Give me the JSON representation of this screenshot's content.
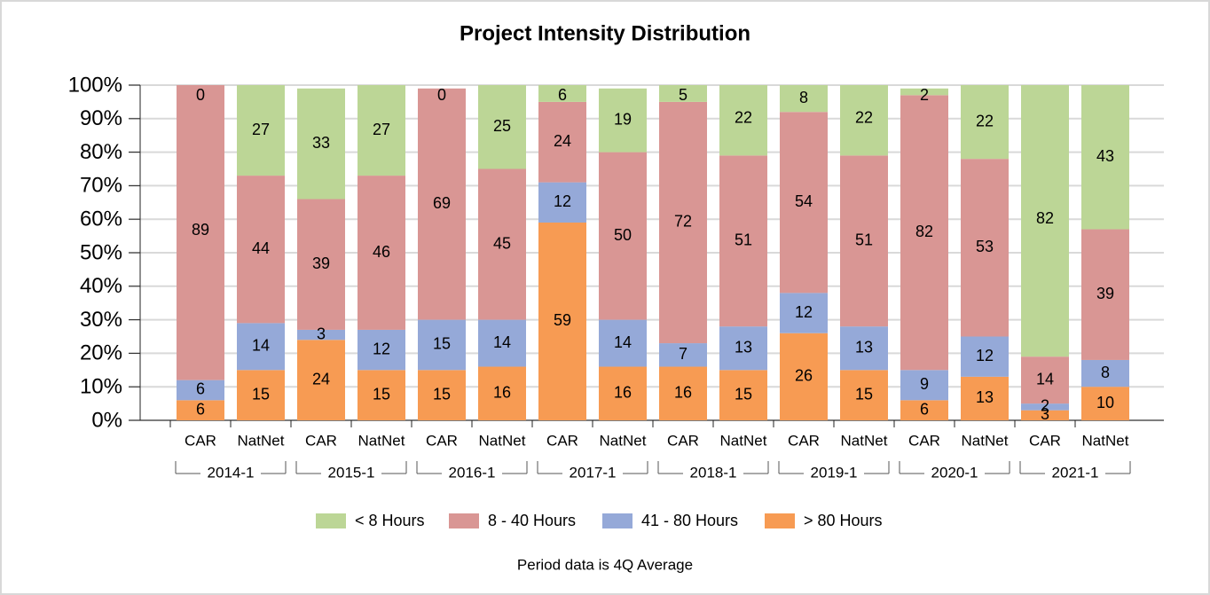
{
  "chart_data": {
    "type": "stacked_bar_100",
    "title": "Project Intensity Distribution",
    "caption": "Period data is 4Q Average",
    "categories": [
      "CAR",
      "NatNet",
      "CAR",
      "NatNet",
      "CAR",
      "NatNet",
      "CAR",
      "NatNet",
      "CAR",
      "NatNet",
      "CAR",
      "NatNet",
      "CAR",
      "NatNet",
      "CAR",
      "NatNet"
    ],
    "groups": [
      "2014-1",
      "2015-1",
      "2016-1",
      "2017-1",
      "2018-1",
      "2019-1",
      "2020-1",
      "2021-1"
    ],
    "series": [
      {
        "name": "< 8 Hours",
        "color": "#bcd696",
        "values": [
          0,
          27,
          33,
          27,
          0,
          25,
          6,
          19,
          5,
          22,
          8,
          22,
          2,
          22,
          82,
          43
        ]
      },
      {
        "name": "8 - 40 Hours",
        "color": "#d99694",
        "values": [
          89,
          44,
          39,
          46,
          69,
          45,
          24,
          50,
          72,
          51,
          54,
          51,
          82,
          53,
          14,
          39
        ]
      },
      {
        "name": "41 - 80 Hours",
        "color": "#95a9d8",
        "values": [
          6,
          14,
          3,
          12,
          15,
          14,
          12,
          14,
          7,
          13,
          12,
          13,
          9,
          12,
          2,
          8
        ]
      },
      {
        "name": "> 80 Hours",
        "color": "#f79b53",
        "values": [
          6,
          15,
          24,
          15,
          15,
          16,
          59,
          16,
          16,
          15,
          26,
          15,
          6,
          13,
          3,
          10
        ]
      }
    ],
    "ylim": [
      0,
      100
    ],
    "yticks": [
      {
        "value": 0,
        "label": "0%"
      },
      {
        "value": 10,
        "label": "10%"
      },
      {
        "value": 20,
        "label": "20%"
      },
      {
        "value": 30,
        "label": "30%"
      },
      {
        "value": 40,
        "label": "40%"
      },
      {
        "value": 50,
        "label": "50%"
      },
      {
        "value": 60,
        "label": "60%"
      },
      {
        "value": 70,
        "label": "70%"
      },
      {
        "value": 80,
        "label": "80%"
      },
      {
        "value": 90,
        "label": "90%"
      },
      {
        "value": 100,
        "label": "100%"
      }
    ],
    "grid": true
  }
}
